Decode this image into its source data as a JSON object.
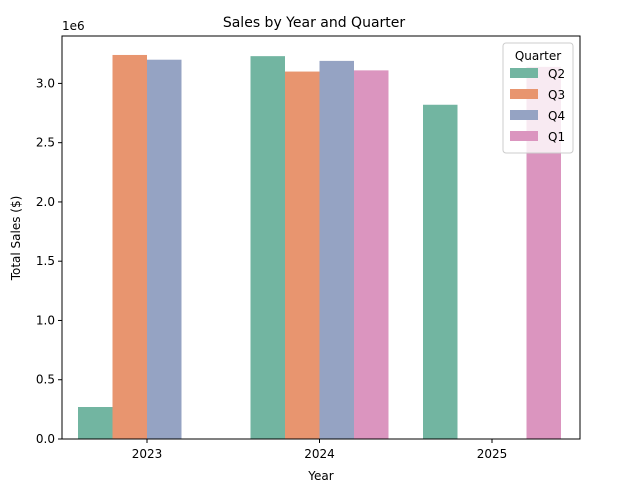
{
  "chart_data": {
    "type": "bar",
    "title": "Sales by Year and Quarter",
    "xlabel": "Year",
    "ylabel": "Total Sales ($)",
    "offset_text": "1e6",
    "categories": [
      "2023",
      "2024",
      "2025"
    ],
    "yticks": [
      0.0,
      0.5,
      1.0,
      1.5,
      2.0,
      2.5,
      3.0
    ],
    "ytick_labels": [
      "0.0",
      "0.5",
      "1.0",
      "1.5",
      "2.0",
      "2.5",
      "3.0"
    ],
    "ylim": [
      0,
      3.4
    ],
    "legend": {
      "title": "Quarter",
      "position": "top-right"
    },
    "series": [
      {
        "name": "Q2",
        "color": "#72b5a1",
        "values": [
          0.27,
          3.23,
          2.82
        ]
      },
      {
        "name": "Q3",
        "color": "#e8956f",
        "values": [
          3.24,
          3.1,
          null
        ]
      },
      {
        "name": "Q4",
        "color": "#95a3c3",
        "values": [
          3.2,
          3.19,
          null
        ]
      },
      {
        "name": "Q1",
        "color": "#db95bf",
        "values": [
          null,
          3.11,
          3.14
        ]
      }
    ]
  }
}
